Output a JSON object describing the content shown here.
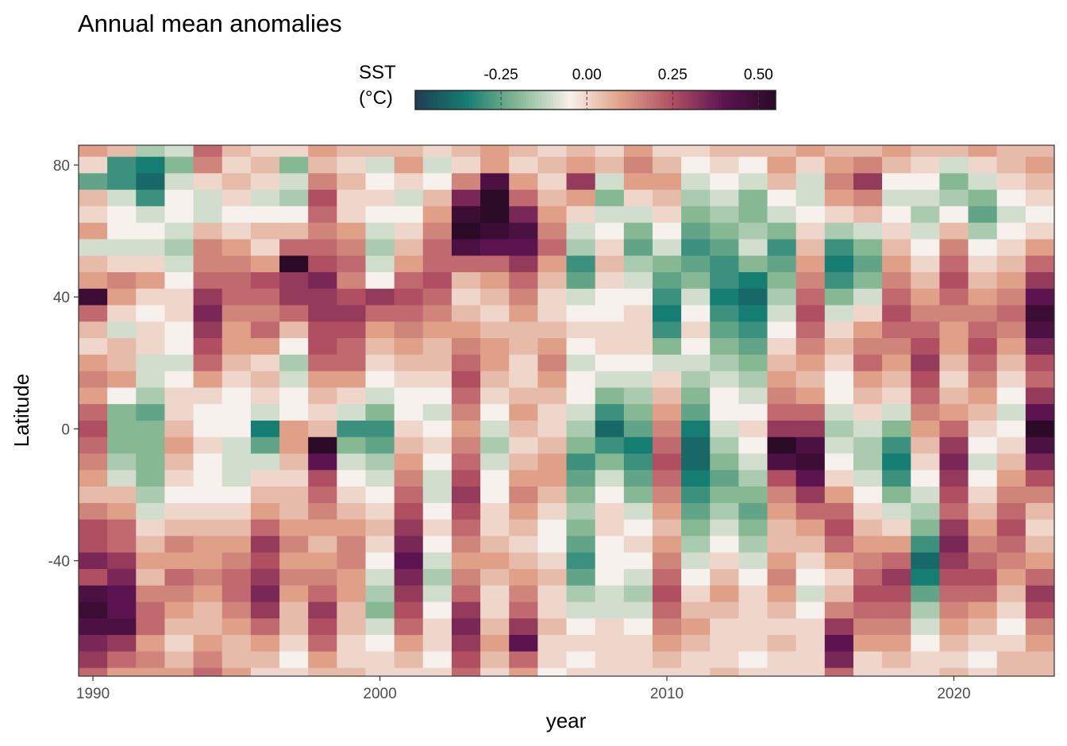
{
  "chart_data": {
    "type": "heatmap",
    "title": "Annual mean anomalies",
    "xlabel": "year",
    "ylabel": "Latitude",
    "legend": {
      "title_line1": "SST",
      "title_line2": "(°C)",
      "range": [
        -0.5,
        0.55
      ],
      "ticks": [
        -0.25,
        0.0,
        0.25,
        0.5
      ],
      "tick_labels": [
        "-0.25",
        "0.00",
        "0.25",
        "0.50"
      ],
      "position": "top",
      "colormap": [
        "#1f3d54",
        "#167d72",
        "#86b893",
        "#f6f1ec",
        "#e0a088",
        "#b04e62",
        "#5c1450",
        "#2a0a26"
      ]
    },
    "xlim": [
      1989.5,
      2023.5
    ],
    "ylim": [
      -75,
      86
    ],
    "x_ticks": [
      1990,
      2000,
      2010,
      2020
    ],
    "x_tick_labels": [
      "1990",
      "2000",
      "2010",
      "2020"
    ],
    "y_ticks": [
      -40,
      0,
      40,
      80
    ],
    "y_tick_labels": [
      "-40",
      "0",
      "40",
      "80"
    ],
    "years": [
      1990,
      1991,
      1992,
      1993,
      1994,
      1995,
      1996,
      1997,
      1998,
      1999,
      2000,
      2001,
      2002,
      2003,
      2004,
      2005,
      2006,
      2007,
      2008,
      2009,
      2010,
      2011,
      2012,
      2013,
      2014,
      2015,
      2016,
      2017,
      2018,
      2019,
      2020,
      2021,
      2022,
      2023
    ],
    "latitudes": [
      85,
      80,
      75,
      70,
      65,
      60,
      55,
      50,
      45,
      40,
      35,
      30,
      25,
      20,
      15,
      10,
      5,
      0,
      -5,
      -10,
      -15,
      -20,
      -25,
      -30,
      -35,
      -40,
      -45,
      -50,
      -55,
      -60,
      -65,
      -70,
      -75
    ],
    "values": [
      [
        0.1,
        0.0,
        -0.25,
        0.05,
        0.0,
        0.1,
        -0.1,
        0.05,
        0.1,
        0.5,
        0.2,
        0.05,
        0.0,
        0.1,
        0.15,
        0.1,
        0.2,
        0.25,
        0.2,
        0.15,
        0.1,
        0.05,
        0.15,
        0.25,
        0.25,
        0.35,
        0.25,
        0.45,
        0.5,
        0.45,
        0.35,
        0.3,
        0.2
      ],
      [
        0.05,
        -0.3,
        -0.3,
        -0.1,
        -0.05,
        -0.05,
        -0.1,
        0.0,
        0.15,
        0.1,
        0.0,
        -0.1,
        0.05,
        0.05,
        0.1,
        -0.05,
        -0.2,
        -0.2,
        -0.2,
        -0.15,
        -0.1,
        0.05,
        0.1,
        0.2,
        0.2,
        0.3,
        0.35,
        0.4,
        0.4,
        0.45,
        0.3,
        0.2,
        0.1
      ],
      [
        -0.15,
        -0.35,
        -0.4,
        -0.3,
        -0.1,
        -0.05,
        -0.1,
        0.0,
        0.1,
        0.0,
        -0.05,
        0.0,
        0.0,
        -0.1,
        -0.1,
        -0.15,
        -0.25,
        -0.2,
        -0.2,
        -0.2,
        -0.2,
        -0.15,
        -0.1,
        0.0,
        0.05,
        0.1,
        0.05,
        0.15,
        0.2,
        0.2,
        0.1,
        0.15,
        0.1
      ],
      [
        -0.1,
        -0.2,
        -0.1,
        -0.05,
        -0.05,
        -0.1,
        -0.15,
        -0.1,
        -0.05,
        0.0,
        0.0,
        -0.05,
        -0.05,
        -0.1,
        -0.05,
        0.0,
        0.0,
        0.05,
        0.1,
        0.05,
        0.0,
        -0.05,
        0.0,
        0.05,
        0.15,
        0.1,
        0.2,
        0.15,
        0.1,
        0.05,
        0.0,
        0.05,
        0.1
      ],
      [
        0.2,
        0.15,
        0.0,
        -0.1,
        -0.1,
        0.05,
        0.15,
        0.15,
        0.2,
        0.3,
        0.35,
        0.3,
        0.25,
        0.2,
        0.1,
        0.0,
        -0.05,
        -0.05,
        0.0,
        -0.05,
        -0.05,
        -0.05,
        0.0,
        0.05,
        0.1,
        0.1,
        0.15,
        0.1,
        0.05,
        0.05,
        0.1,
        0.15,
        0.2
      ],
      [
        0.05,
        0.0,
        0.05,
        0.0,
        -0.05,
        0.0,
        0.1,
        0.15,
        0.2,
        0.2,
        0.15,
        0.1,
        0.1,
        0.05,
        0.0,
        -0.05,
        -0.05,
        -0.05,
        -0.1,
        -0.1,
        -0.1,
        -0.05,
        0.0,
        0.05,
        0.1,
        0.15,
        0.2,
        0.2,
        0.15,
        0.1,
        0.05,
        0.05,
        0.1
      ],
      [
        0.0,
        0.05,
        0.0,
        -0.1,
        -0.05,
        0.05,
        0.0,
        0.1,
        0.25,
        0.2,
        0.15,
        0.2,
        0.1,
        0.0,
        0.05,
        0.0,
        -0.1,
        -0.35,
        -0.25,
        -0.1,
        0.0,
        0.05,
        0.1,
        0.2,
        0.3,
        0.25,
        0.3,
        0.35,
        0.3,
        0.2,
        0.1,
        0.05,
        0.0
      ],
      [
        0.0,
        -0.2,
        -0.1,
        -0.15,
        -0.05,
        0.05,
        0.2,
        0.55,
        0.3,
        0.3,
        0.2,
        0.05,
        -0.05,
        -0.15,
        -0.1,
        -0.05,
        -0.05,
        0.1,
        0.1,
        0.05,
        0.0,
        0.05,
        0.05,
        0.1,
        0.15,
        0.1,
        0.15,
        0.1,
        0.05,
        0.05,
        0.0,
        -0.05,
        0.0
      ],
      [
        0.1,
        0.05,
        0.15,
        0.25,
        0.2,
        0.15,
        0.2,
        0.25,
        0.35,
        0.3,
        0.3,
        0.25,
        0.25,
        0.2,
        0.1,
        0.05,
        0.0,
        0.05,
        0.55,
        0.4,
        0.25,
        0.2,
        0.15,
        0.1,
        0.05,
        0.1,
        0.15,
        0.2,
        0.3,
        0.25,
        0.2,
        0.1,
        0.05
      ],
      [
        0.05,
        0.0,
        0.05,
        0.0,
        0.0,
        0.1,
        0.15,
        0.2,
        0.15,
        0.25,
        0.3,
        0.25,
        0.2,
        0.2,
        0.1,
        0.0,
        -0.1,
        -0.3,
        -0.2,
        -0.1,
        -0.05,
        0.0,
        0.05,
        0.1,
        0.15,
        0.15,
        0.1,
        0.1,
        0.05,
        0.05,
        0.0,
        0.0,
        0.05
      ],
      [
        0.05,
        -0.1,
        -0.05,
        0.0,
        -0.05,
        -0.1,
        -0.15,
        -0.1,
        -0.05,
        0.3,
        0.2,
        0.1,
        0.05,
        0.0,
        -0.05,
        -0.1,
        -0.2,
        -0.3,
        -0.25,
        -0.15,
        -0.1,
        -0.05,
        0.0,
        0.05,
        0.0,
        -0.05,
        -0.1,
        -0.15,
        -0.2,
        -0.1,
        -0.05,
        0.0,
        0.0
      ],
      [
        0.05,
        0.1,
        0.0,
        -0.1,
        -0.05,
        0.0,
        0.05,
        0.1,
        0.2,
        0.25,
        0.2,
        0.15,
        0.1,
        0.05,
        0.0,
        -0.05,
        -0.05,
        0.0,
        0.05,
        0.1,
        0.15,
        0.2,
        0.25,
        0.3,
        0.35,
        0.4,
        0.35,
        0.3,
        0.25,
        0.2,
        0.1,
        0.05,
        0.0
      ],
      [
        0.0,
        -0.1,
        -0.05,
        0.05,
        0.1,
        0.15,
        0.2,
        0.2,
        0.25,
        0.2,
        0.15,
        0.1,
        0.05,
        0.05,
        0.0,
        -0.05,
        -0.1,
        -0.05,
        0.0,
        -0.05,
        -0.1,
        -0.1,
        -0.05,
        0.0,
        -0.05,
        -0.1,
        -0.15,
        -0.1,
        -0.05,
        0.0,
        0.0,
        -0.05,
        0.0
      ],
      [
        0.05,
        0.0,
        0.15,
        0.35,
        0.5,
        0.55,
        0.45,
        0.2,
        0.05,
        0.0,
        0.05,
        0.1,
        0.15,
        0.2,
        0.25,
        0.2,
        0.15,
        0.1,
        0.15,
        0.2,
        0.25,
        0.3,
        0.25,
        0.2,
        0.15,
        0.1,
        0.15,
        0.2,
        0.3,
        0.35,
        0.3,
        0.25,
        0.2
      ],
      [
        0.1,
        0.1,
        0.45,
        0.55,
        0.55,
        0.5,
        0.4,
        0.2,
        0.1,
        0.05,
        0.0,
        0.05,
        0.1,
        0.1,
        0.05,
        0.0,
        -0.05,
        -0.1,
        -0.15,
        -0.1,
        -0.05,
        -0.05,
        0.0,
        0.0,
        0.05,
        0.1,
        0.05,
        0.0,
        0.0,
        0.05,
        0.1,
        0.05,
        0.0
      ],
      [
        0.05,
        0.0,
        0.1,
        0.2,
        0.35,
        0.45,
        0.4,
        0.3,
        0.2,
        0.15,
        0.1,
        0.05,
        0.05,
        0.0,
        0.0,
        0.05,
        0.1,
        0.05,
        0.0,
        0.05,
        0.1,
        0.15,
        0.1,
        0.05,
        0.0,
        0.05,
        0.1,
        0.15,
        0.2,
        0.3,
        0.4,
        0.2,
        0.1
      ],
      [
        0.0,
        0.05,
        0.0,
        0.05,
        0.1,
        0.15,
        0.2,
        0.1,
        0.05,
        0.0,
        0.0,
        0.05,
        0.1,
        0.15,
        0.1,
        0.05,
        0.0,
        0.0,
        0.05,
        0.1,
        0.1,
        0.05,
        0.0,
        -0.05,
        -0.05,
        0.0,
        0.05,
        0.0,
        0.0,
        0.05,
        0.0,
        0.0,
        -0.05
      ],
      [
        0.05,
        0.1,
        0.3,
        0.1,
        0.0,
        -0.1,
        -0.15,
        -0.3,
        -0.25,
        -0.1,
        -0.05,
        0.0,
        -0.05,
        -0.1,
        -0.05,
        -0.05,
        -0.1,
        -0.15,
        -0.2,
        -0.3,
        -0.25,
        -0.2,
        -0.15,
        -0.2,
        -0.25,
        -0.3,
        -0.25,
        -0.15,
        -0.1,
        -0.05,
        0.0,
        -0.05,
        0.0
      ],
      [
        0.0,
        0.05,
        -0.1,
        -0.2,
        -0.1,
        -0.05,
        0.0,
        0.05,
        0.0,
        -0.05,
        -0.05,
        0.0,
        0.0,
        -0.05,
        -0.1,
        -0.2,
        -0.3,
        -0.4,
        -0.3,
        -0.2,
        -0.1,
        -0.05,
        0.0,
        0.0,
        -0.05,
        -0.05,
        -0.05,
        -0.1,
        -0.1,
        0.0,
        0.0,
        0.0,
        0.0
      ],
      [
        0.1,
        0.15,
        0.1,
        0.0,
        -0.1,
        -0.2,
        -0.25,
        -0.15,
        -0.1,
        -0.05,
        0.0,
        0.0,
        0.0,
        -0.05,
        -0.1,
        -0.15,
        -0.2,
        -0.25,
        -0.35,
        -0.3,
        -0.25,
        -0.2,
        -0.1,
        -0.05,
        0.0,
        -0.05,
        -0.1,
        -0.15,
        -0.1,
        -0.05,
        0.0,
        0.0,
        0.0
      ],
      [
        0.0,
        0.05,
        0.1,
        0.05,
        0.0,
        -0.05,
        -0.1,
        -0.2,
        -0.25,
        -0.3,
        -0.35,
        -0.3,
        -0.2,
        -0.1,
        0.0,
        0.05,
        0.1,
        0.15,
        0.2,
        0.25,
        0.2,
        0.15,
        0.1,
        0.05,
        0.1,
        0.15,
        0.2,
        0.25,
        0.2,
        0.15,
        0.1,
        0.05,
        0.0
      ],
      [
        0.0,
        -0.05,
        -0.1,
        -0.15,
        -0.2,
        -0.25,
        -0.3,
        -0.25,
        -0.2,
        -0.1,
        -0.05,
        0.0,
        -0.05,
        -0.1,
        -0.15,
        -0.2,
        -0.25,
        -0.35,
        -0.4,
        -0.4,
        -0.35,
        -0.3,
        -0.25,
        -0.2,
        -0.15,
        -0.1,
        -0.05,
        0.0,
        0.05,
        0.1,
        0.05,
        0.0,
        0.0
      ],
      [
        0.05,
        0.0,
        -0.05,
        -0.1,
        -0.15,
        -0.2,
        -0.25,
        -0.3,
        -0.3,
        -0.35,
        -0.3,
        -0.25,
        -0.2,
        -0.15,
        -0.1,
        -0.05,
        -0.05,
        -0.1,
        -0.15,
        -0.2,
        -0.25,
        -0.2,
        -0.15,
        -0.1,
        -0.05,
        0.0,
        0.05,
        0.1,
        0.05,
        0.0,
        0.0,
        0.0,
        0.05
      ],
      [
        0.05,
        -0.05,
        -0.1,
        -0.2,
        -0.2,
        -0.15,
        -0.1,
        -0.2,
        -0.35,
        -0.4,
        -0.35,
        -0.3,
        -0.25,
        -0.2,
        -0.15,
        -0.1,
        -0.05,
        0.0,
        -0.05,
        -0.1,
        -0.15,
        -0.2,
        -0.25,
        -0.2,
        -0.15,
        -0.1,
        -0.05,
        0.0,
        0.0,
        0.0,
        0.0,
        -0.05,
        0.0
      ],
      [
        0.05,
        0.1,
        0.05,
        -0.05,
        -0.1,
        -0.2,
        -0.3,
        -0.25,
        -0.2,
        -0.15,
        -0.1,
        -0.05,
        0.0,
        0.05,
        0.1,
        0.15,
        0.2,
        0.3,
        0.55,
        0.45,
        0.25,
        0.15,
        0.1,
        0.05,
        0.05,
        0.1,
        0.15,
        0.1,
        0.05,
        0.0,
        0.05,
        0.0,
        0.0
      ],
      [
        0.1,
        0.0,
        -0.1,
        -0.1,
        -0.05,
        0.0,
        0.05,
        0.1,
        0.15,
        0.2,
        0.25,
        0.2,
        0.15,
        0.1,
        0.05,
        0.1,
        0.2,
        0.3,
        0.45,
        0.5,
        0.4,
        0.3,
        0.2,
        0.1,
        0.05,
        0.0,
        -0.05,
        -0.1,
        -0.05,
        0.0,
        0.0,
        0.0,
        0.0
      ],
      [
        0.05,
        0.1,
        0.15,
        0.1,
        0.0,
        -0.15,
        -0.3,
        -0.35,
        -0.3,
        -0.2,
        -0.1,
        0.0,
        0.05,
        0.0,
        -0.05,
        -0.05,
        -0.1,
        -0.15,
        -0.1,
        -0.05,
        0.0,
        0.1,
        0.2,
        0.25,
        0.2,
        0.1,
        0.0,
        0.05,
        0.15,
        0.3,
        0.4,
        0.35,
        0.2
      ],
      [
        0.05,
        0.15,
        0.3,
        0.15,
        0.05,
        -0.1,
        -0.2,
        -0.25,
        -0.2,
        -0.1,
        0.0,
        0.1,
        0.15,
        0.2,
        0.1,
        0.05,
        0.0,
        -0.1,
        -0.15,
        -0.15,
        -0.1,
        -0.05,
        0.0,
        0.05,
        0.1,
        0.15,
        0.2,
        0.25,
        0.2,
        0.15,
        0.1,
        0.0,
        0.0
      ],
      [
        0.1,
        0.05,
        -0.05,
        -0.1,
        -0.05,
        0.0,
        0.05,
        0.1,
        0.15,
        0.2,
        0.25,
        0.2,
        0.15,
        0.1,
        0.05,
        0.0,
        -0.1,
        -0.2,
        -0.3,
        -0.35,
        -0.3,
        -0.2,
        -0.1,
        0.0,
        0.1,
        0.2,
        0.3,
        0.25,
        0.2,
        0.15,
        0.1,
        0.05,
        0.0
      ],
      [
        0.05,
        0.0,
        -0.05,
        -0.1,
        -0.15,
        -0.1,
        -0.05,
        0.0,
        0.05,
        0.1,
        0.15,
        0.2,
        0.25,
        0.3,
        0.25,
        0.2,
        0.15,
        0.1,
        0.05,
        0.0,
        -0.05,
        -0.1,
        -0.15,
        -0.2,
        -0.3,
        -0.4,
        -0.35,
        -0.25,
        -0.15,
        -0.1,
        -0.05,
        0.0,
        0.0
      ],
      [
        0.05,
        -0.1,
        -0.2,
        -0.15,
        -0.05,
        0.05,
        0.15,
        0.2,
        0.25,
        0.2,
        0.15,
        0.1,
        0.1,
        0.05,
        0.0,
        0.05,
        0.1,
        0.2,
        0.3,
        0.35,
        0.3,
        0.25,
        0.2,
        0.3,
        0.35,
        0.3,
        0.25,
        0.2,
        0.15,
        0.1,
        0.05,
        0.0,
        0.05
      ],
      [
        0.1,
        0.0,
        -0.1,
        -0.2,
        -0.25,
        -0.15,
        -0.05,
        0.0,
        0.05,
        0.1,
        0.15,
        0.2,
        0.25,
        0.2,
        0.15,
        0.1,
        0.05,
        0.0,
        -0.05,
        -0.1,
        -0.05,
        0.0,
        0.05,
        0.1,
        0.15,
        0.2,
        0.25,
        0.2,
        0.1,
        0.05,
        0.0,
        -0.05,
        0.0
      ],
      [
        0.05,
        0.05,
        0.0,
        -0.05,
        -0.1,
        -0.05,
        0.0,
        0.05,
        0.1,
        0.15,
        0.2,
        0.15,
        0.1,
        0.05,
        0.0,
        -0.05,
        -0.1,
        -0.05,
        0.0,
        0.05,
        0.1,
        0.15,
        0.2,
        0.25,
        0.2,
        0.15,
        0.1,
        0.05,
        0.0,
        -0.05,
        0.0,
        0.05,
        0.05
      ],
      [
        0.05,
        0.1,
        0.05,
        0.0,
        -0.05,
        0.0,
        0.1,
        0.2,
        0.3,
        0.4,
        0.5,
        0.45,
        0.35,
        0.25,
        0.2,
        0.3,
        0.4,
        0.55,
        0.45,
        0.35,
        0.25,
        0.15,
        0.05,
        0.0,
        0.05,
        0.1,
        0.2,
        0.3,
        0.25,
        0.15,
        0.1,
        0.05,
        0.05
      ]
    ]
  }
}
